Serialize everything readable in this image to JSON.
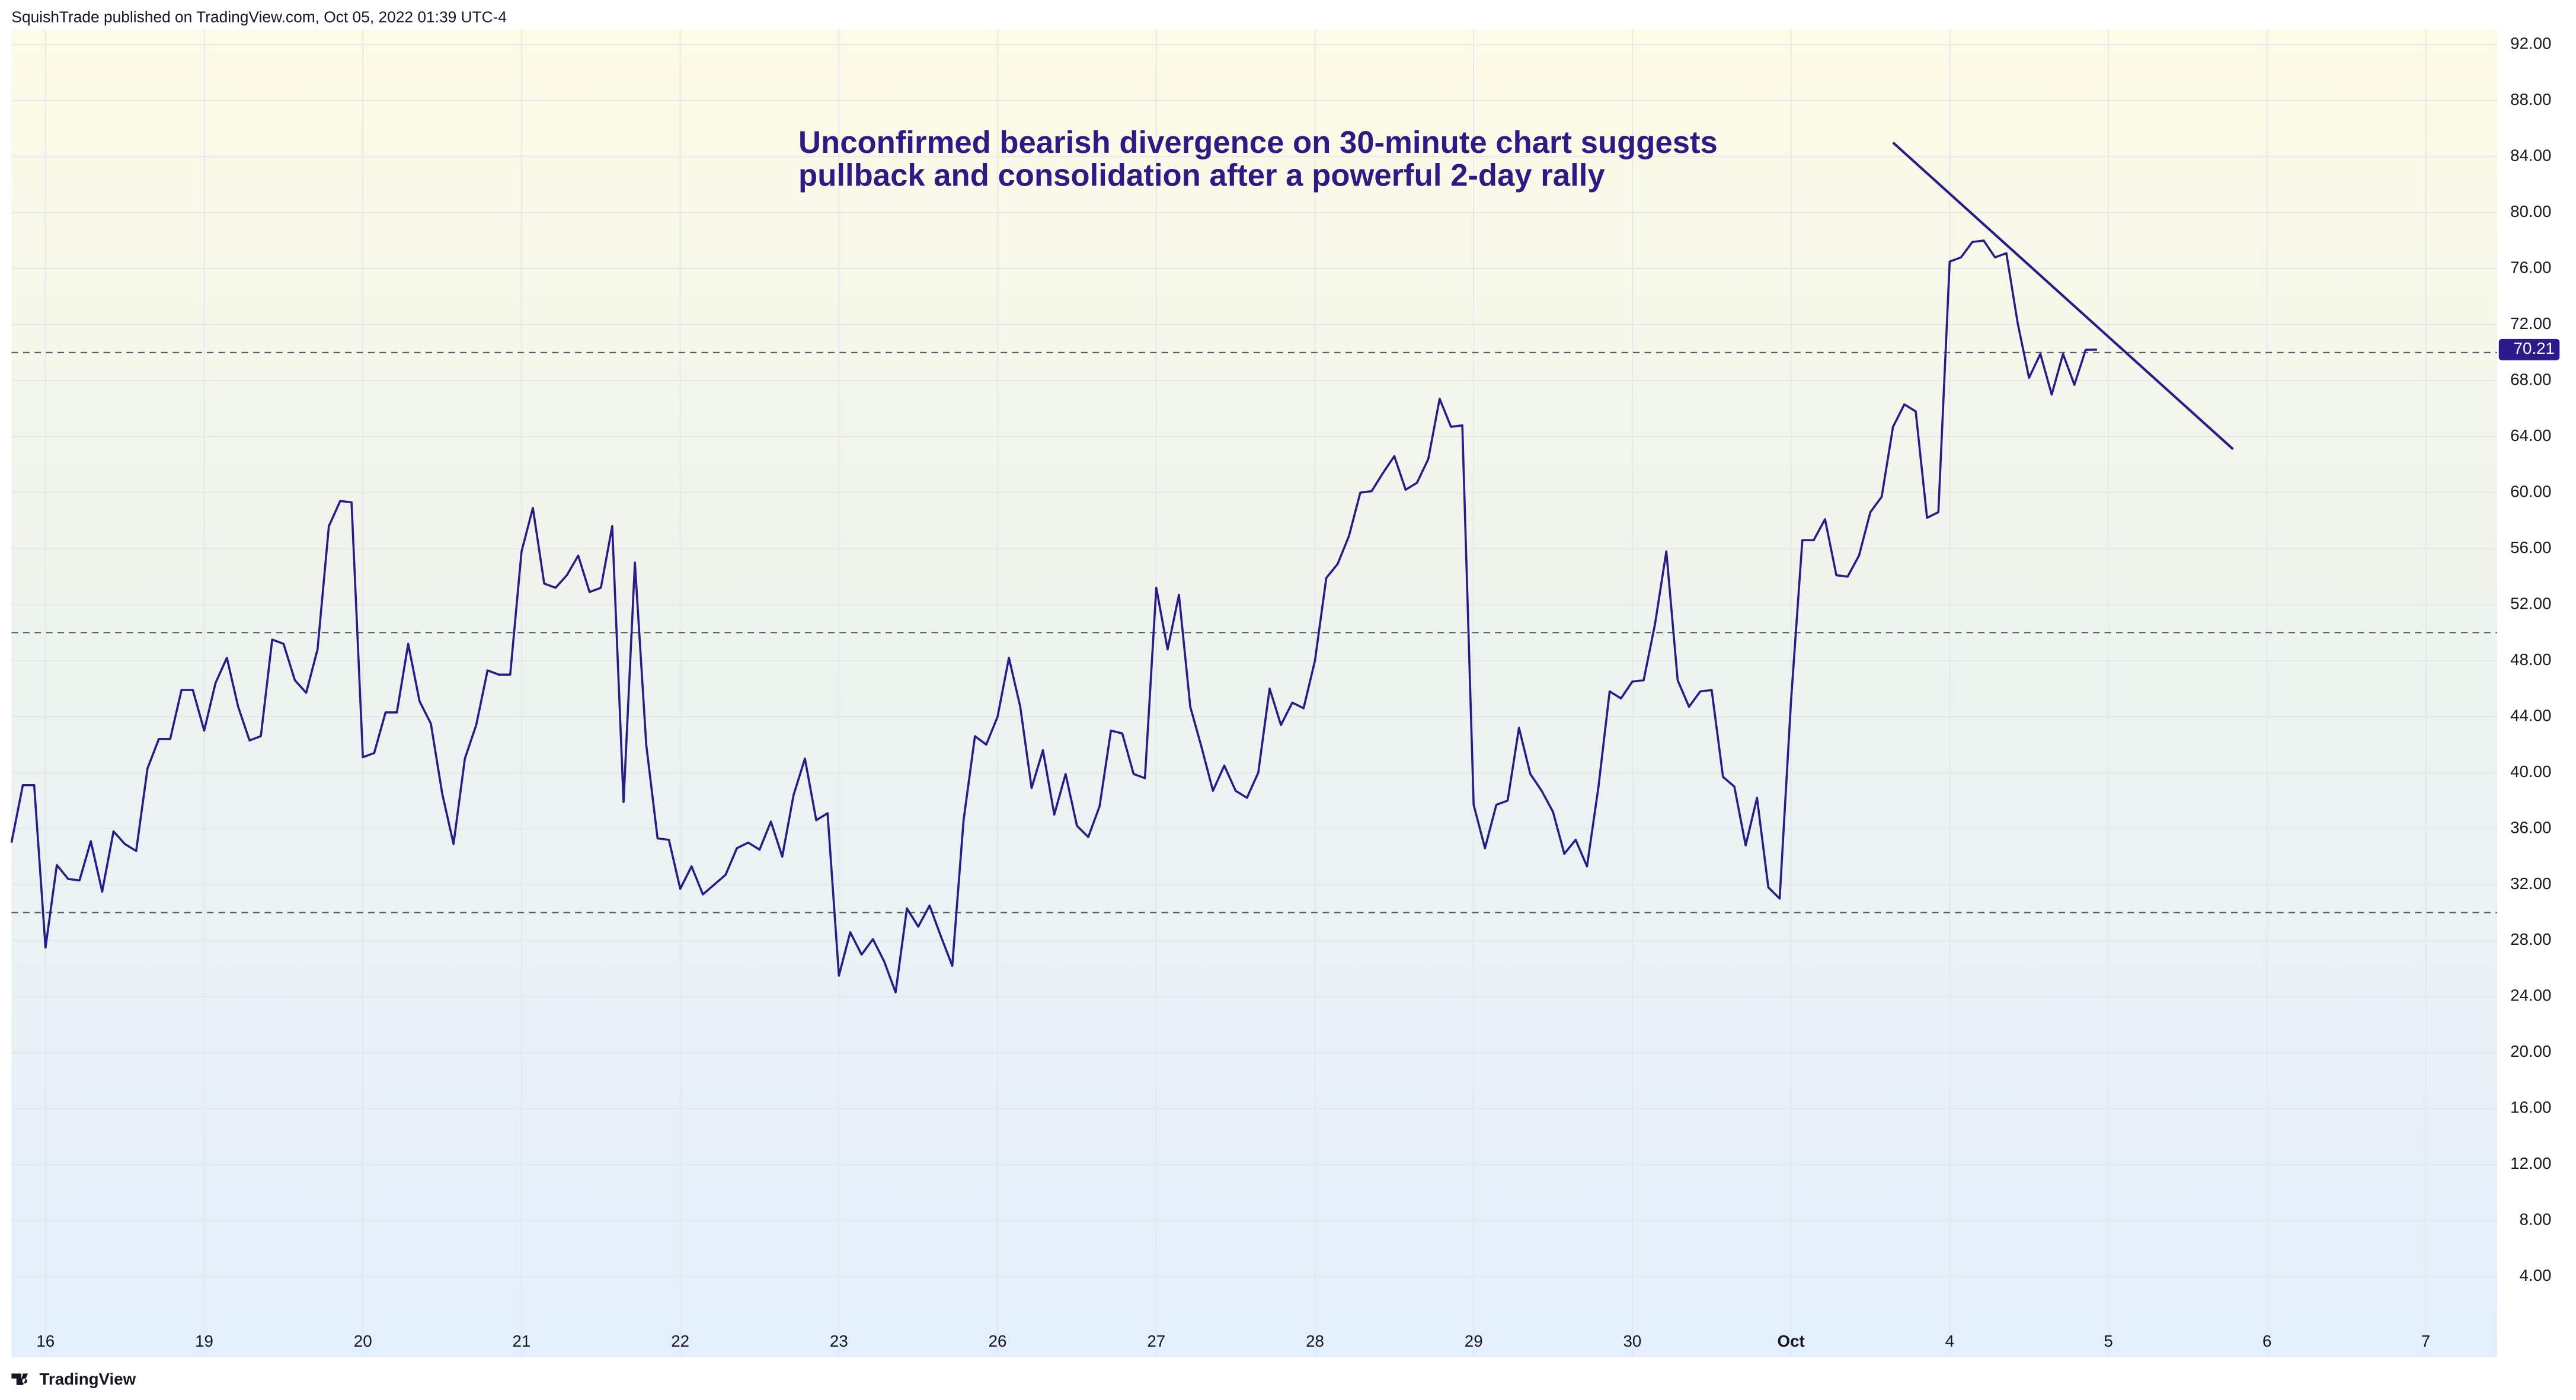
{
  "header": "SquishTrade published on TradingView.com, Oct 05, 2022 01:39 UTC-4",
  "footer": "TradingView",
  "chart_data": {
    "type": "line",
    "annotation": [
      "Unconfirmed bearish divergence on 30-minute chart suggests",
      "pullback and consolidation after a powerful 2-day rally"
    ],
    "x": [
      0,
      1,
      2,
      3,
      4,
      5,
      6,
      7,
      8,
      9,
      10,
      11,
      12,
      13,
      14,
      15,
      16,
      17,
      18,
      19,
      20,
      21,
      22,
      23,
      24,
      25,
      26,
      27,
      28,
      29,
      30,
      31,
      32,
      33,
      34,
      35,
      36,
      37,
      38,
      39,
      40,
      41,
      42,
      43,
      44,
      45,
      46,
      47,
      48,
      49,
      50,
      51,
      52,
      53,
      54,
      55,
      56,
      57,
      58,
      59,
      60,
      61,
      62,
      63,
      64,
      65,
      66,
      67,
      68,
      69,
      70,
      71,
      72,
      73,
      74,
      75,
      76,
      77,
      78,
      79,
      80,
      81,
      82,
      83,
      84,
      85,
      86,
      87,
      88,
      89,
      90,
      91,
      92,
      93,
      94,
      95,
      96,
      97,
      98,
      99,
      100,
      101,
      102,
      103,
      104,
      105,
      106,
      107,
      108,
      109,
      110,
      111,
      112,
      113,
      114,
      115,
      116,
      117,
      118,
      119,
      120,
      121,
      122,
      123,
      124,
      125,
      126,
      127,
      128,
      129,
      130,
      131,
      132,
      133,
      134,
      135,
      136,
      137,
      138,
      139,
      140,
      141,
      142,
      143,
      144,
      145,
      146,
      147,
      148,
      149,
      150,
      151,
      152,
      153,
      154,
      155,
      156,
      157,
      158,
      159,
      160,
      161,
      162,
      163,
      164,
      165,
      166,
      167,
      168,
      169,
      170,
      171,
      172,
      173,
      174,
      175,
      176,
      177,
      178,
      179,
      180,
      181,
      182,
      183,
      184
    ],
    "series": [
      {
        "color": "#2a1b8c",
        "values": [
          35.0,
          39.1,
          39.1,
          27.5,
          33.4,
          32.4,
          32.3,
          35.1,
          31.5,
          35.8,
          34.9,
          34.4,
          40.3,
          42.4,
          42.4,
          45.9,
          45.9,
          43.0,
          46.4,
          48.2,
          44.7,
          42.3,
          42.6,
          49.5,
          49.2,
          46.6,
          45.7,
          48.8,
          57.6,
          59.4,
          59.3,
          41.1,
          41.4,
          44.3,
          44.3,
          49.2,
          45.1,
          43.5,
          38.5,
          34.9,
          41.0,
          43.4,
          47.3,
          47.0,
          47.0,
          55.8,
          58.9,
          53.5,
          53.2,
          54.1,
          55.5,
          52.9,
          53.2,
          57.6,
          37.9,
          55.0,
          42.0,
          35.3,
          35.2,
          31.7,
          33.3,
          31.3,
          32.0,
          32.7,
          34.6,
          35.0,
          34.5,
          36.5,
          34.0,
          38.4,
          41.0,
          36.6,
          37.1,
          25.5,
          28.6,
          27.0,
          28.1,
          26.5,
          24.3,
          30.3,
          29.0,
          30.5,
          28.3,
          26.2,
          36.6,
          42.6,
          42.0,
          44.0,
          48.2,
          44.7,
          38.9,
          41.6,
          37.0,
          39.9,
          36.2,
          35.4,
          37.6,
          43.0,
          42.8,
          39.9,
          39.6,
          53.2,
          48.8,
          52.7,
          44.7,
          41.8,
          38.7,
          40.5,
          38.7,
          38.2,
          40.0,
          46.0,
          43.4,
          45.0,
          44.6,
          48.0,
          53.9,
          54.9,
          56.9,
          60.0,
          60.1,
          61.4,
          62.6,
          60.2,
          60.7,
          62.4,
          66.7,
          64.7,
          64.8,
          37.7,
          34.6,
          37.7,
          38.0,
          43.2,
          39.9,
          38.7,
          37.2,
          34.2,
          35.2,
          33.3,
          38.9,
          45.8,
          45.3,
          46.5,
          46.6,
          50.6,
          55.8,
          46.6,
          44.7,
          45.8,
          45.9,
          39.7,
          39.0,
          34.8,
          38.2,
          31.8,
          31.0,
          45.1,
          56.6,
          56.6,
          58.1,
          54.1,
          54.0,
          55.5,
          58.6,
          59.7,
          64.7,
          66.3,
          65.8,
          58.2,
          58.6,
          76.5,
          76.8,
          77.9,
          78.0,
          76.8,
          77.1,
          72.1,
          68.2,
          69.9,
          67.0,
          69.9,
          67.7,
          70.2,
          70.21
        ]
      }
    ],
    "last_price": 70.21,
    "levels": [
      70,
      50,
      30
    ],
    "trendline": {
      "x": [
        166,
        196
      ],
      "y": [
        85.0,
        63.1
      ]
    },
    "xlim": [
      0,
      219.3
    ],
    "xticks": [
      {
        "value": 3,
        "label": "16"
      },
      {
        "value": 17,
        "label": "19"
      },
      {
        "value": 31,
        "label": "20"
      },
      {
        "value": 45,
        "label": "21"
      },
      {
        "value": 59,
        "label": "22"
      },
      {
        "value": 73,
        "label": "23"
      },
      {
        "value": 87,
        "label": "26"
      },
      {
        "value": 101,
        "label": "27"
      },
      {
        "value": 115,
        "label": "28"
      },
      {
        "value": 129,
        "label": "29"
      },
      {
        "value": 143,
        "label": "30"
      },
      {
        "value": 157,
        "label": "Oct"
      },
      {
        "value": 171,
        "label": "4"
      },
      {
        "value": 185,
        "label": "5"
      },
      {
        "value": 199,
        "label": "6"
      },
      {
        "value": 213,
        "label": "7"
      }
    ],
    "ylim": [
      -1.75,
      93.06
    ],
    "yticks": [
      {
        "value": 4,
        "label": "4.00"
      },
      {
        "value": 8,
        "label": "8.00"
      },
      {
        "value": 12,
        "label": "12.00"
      },
      {
        "value": 16,
        "label": "16.00"
      },
      {
        "value": 20,
        "label": "20.00"
      },
      {
        "value": 24,
        "label": "24.00"
      },
      {
        "value": 28,
        "label": "28.00"
      },
      {
        "value": 32,
        "label": "32.00"
      },
      {
        "value": 36,
        "label": "36.00"
      },
      {
        "value": 40,
        "label": "40.00"
      },
      {
        "value": 44,
        "label": "44.00"
      },
      {
        "value": 48,
        "label": "48.00"
      },
      {
        "value": 52,
        "label": "52.00"
      },
      {
        "value": 56,
        "label": "56.00"
      },
      {
        "value": 60,
        "label": "60.00"
      },
      {
        "value": 64,
        "label": "64.00"
      },
      {
        "value": 68,
        "label": "68.00"
      },
      {
        "value": 72,
        "label": "72.00"
      },
      {
        "value": 76,
        "label": "76.00"
      },
      {
        "value": 80,
        "label": "80.00"
      },
      {
        "value": 84,
        "label": "84.00"
      },
      {
        "value": 88,
        "label": "88.00"
      },
      {
        "value": 92,
        "label": "92.00"
      }
    ],
    "grid": true
  }
}
